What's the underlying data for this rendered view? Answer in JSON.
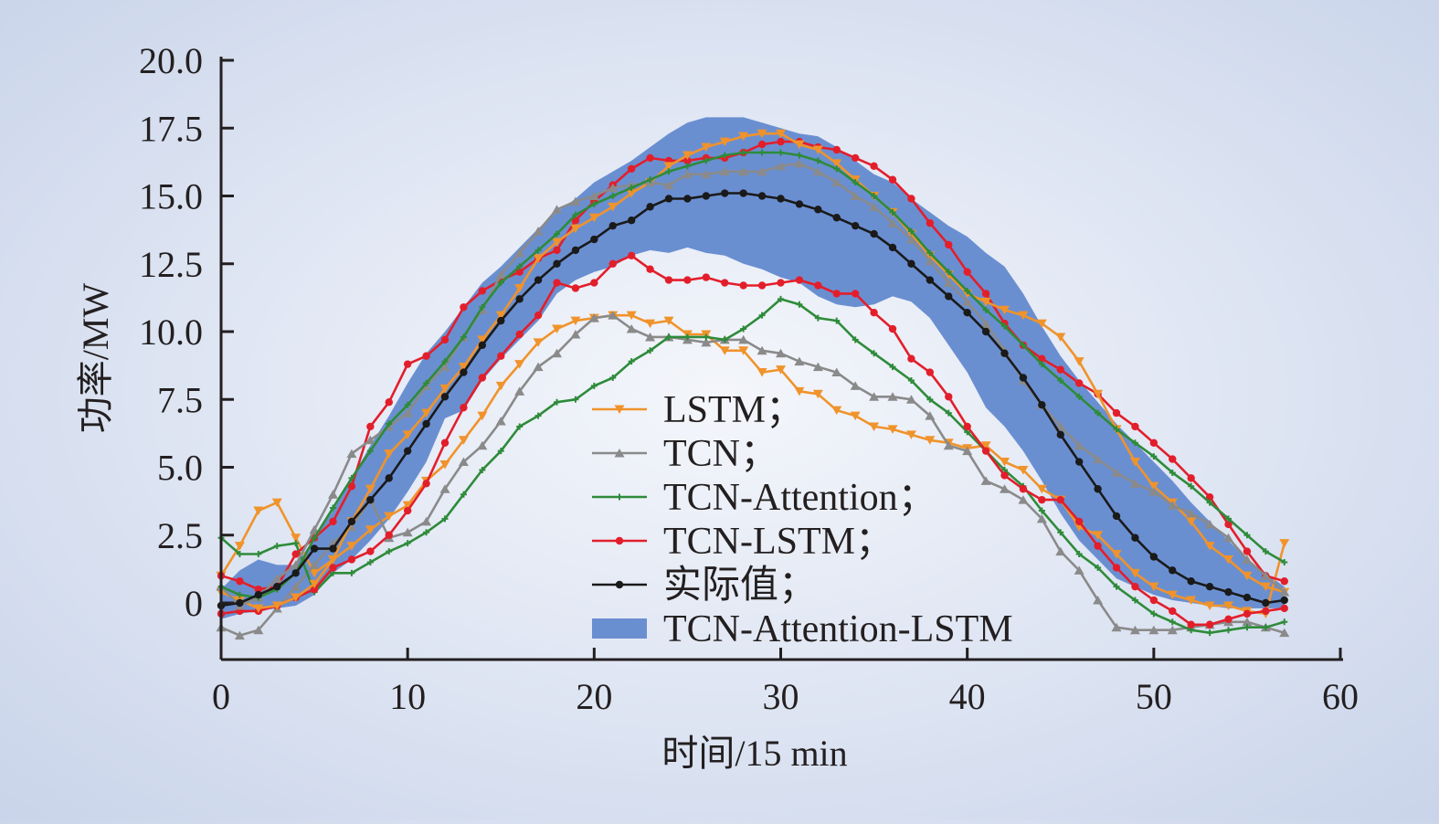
{
  "chart_data": {
    "type": "line",
    "xlabel": "时间/15 min",
    "ylabel": "功率/MW",
    "xlim": [
      0,
      60
    ],
    "ylim": [
      -2,
      20
    ],
    "x_ticks": [
      "0",
      "10",
      "20",
      "30",
      "40",
      "50",
      "60"
    ],
    "y_ticks": [
      "0",
      "2.5",
      "5.0",
      "7.5",
      "10.0",
      "12.5",
      "15.0",
      "17.5",
      "20.0"
    ],
    "y_tick_values": [
      0,
      2.5,
      5,
      7.5,
      10,
      12.5,
      15,
      17.5,
      20
    ],
    "x_tick_values": [
      0,
      10,
      20,
      30,
      40,
      50,
      60
    ],
    "x": [
      0,
      1,
      2,
      3,
      4,
      5,
      6,
      7,
      8,
      9,
      10,
      11,
      12,
      13,
      14,
      15,
      16,
      17,
      18,
      19,
      20,
      21,
      22,
      23,
      24,
      25,
      26,
      27,
      28,
      29,
      30,
      31,
      32,
      33,
      34,
      35,
      36,
      37,
      38,
      39,
      40,
      41,
      42,
      43,
      44,
      45,
      46,
      47,
      48,
      49,
      50,
      51,
      52,
      53,
      54,
      55,
      56,
      57
    ],
    "legend": {
      "entries": [
        "LSTM；",
        "TCN；",
        "TCN-Attention；",
        "TCN-LSTM；",
        "实际值；",
        "TCN-Attention-LSTM"
      ]
    },
    "band": {
      "name": "TCN-Attention-LSTM",
      "color": "#6a8fd1",
      "upper": [
        0.5,
        1.2,
        1.6,
        1.4,
        1.4,
        2.4,
        3.4,
        4.6,
        5.8,
        6.9,
        8.1,
        9.2,
        10.0,
        10.9,
        11.8,
        12.4,
        13.1,
        13.8,
        14.4,
        14.9,
        15.5,
        15.9,
        16.3,
        16.8,
        17.3,
        17.7,
        17.9,
        17.9,
        17.9,
        17.7,
        17.5,
        17.3,
        17.2,
        16.8,
        16.3,
        15.8,
        15.5,
        14.9,
        14.4,
        13.9,
        13.5,
        12.9,
        12.4,
        11.4,
        10.2,
        9.1,
        8.2,
        7.4,
        6.6,
        5.9,
        5.2,
        4.5,
        3.7,
        3.0,
        2.3,
        1.6,
        1.1,
        0.6
      ],
      "lower": [
        -0.6,
        -0.4,
        -0.3,
        -0.2,
        -0.1,
        0.3,
        1.1,
        1.6,
        2.3,
        3.1,
        4.1,
        5.2,
        6.8,
        7.1,
        8.2,
        9.0,
        9.7,
        10.4,
        11.4,
        11.9,
        12.2,
        12.4,
        12.8,
        13.0,
        12.9,
        13.1,
        12.9,
        12.8,
        12.5,
        12.3,
        12.0,
        11.8,
        11.3,
        11.0,
        10.9,
        11.0,
        11.3,
        11.1,
        10.5,
        9.5,
        8.5,
        7.2,
        6.5,
        5.6,
        4.5,
        3.3,
        2.3,
        1.6,
        0.9,
        0.6,
        0.3,
        0.1,
        0.0,
        -0.1,
        -0.2,
        -0.2,
        -0.2,
        -0.2
      ]
    },
    "series": [
      {
        "name": "LSTM；",
        "color": "#f0932b",
        "marker": "triangle-down",
        "values": [
          1.0,
          2.1,
          3.4,
          3.7,
          2.4,
          1.1,
          1.6,
          2.1,
          2.7,
          3.2,
          3.6,
          4.5,
          5.1,
          6.0,
          6.9,
          8.0,
          8.8,
          9.6,
          10.1,
          10.4,
          10.5,
          10.6,
          10.6,
          10.3,
          10.4,
          9.9,
          9.9,
          9.3,
          9.3,
          8.5,
          8.6,
          7.8,
          7.7,
          7.1,
          6.9,
          6.5,
          6.4,
          6.2,
          6.0,
          5.9,
          5.7,
          5.8,
          5.2,
          4.9,
          4.2,
          3.8,
          2.8,
          2.5,
          1.8,
          1.1,
          0.6,
          0.3,
          0.1,
          -0.1,
          -0.1,
          -0.3,
          -0.4,
          2.2
        ]
      },
      {
        "name": "TCN；",
        "color": "#8a8a8a",
        "marker": "triangle-up",
        "values": [
          -0.9,
          -1.2,
          -1.0,
          -0.2,
          0.6,
          1.4,
          2.2,
          2.8,
          3.8,
          2.4,
          2.6,
          3.0,
          4.2,
          5.2,
          5.8,
          6.7,
          7.8,
          8.7,
          9.2,
          9.9,
          10.5,
          10.6,
          10.1,
          9.8,
          9.8,
          9.7,
          9.6,
          9.7,
          9.7,
          9.3,
          9.2,
          8.9,
          8.7,
          8.5,
          8.0,
          7.6,
          7.6,
          7.5,
          6.9,
          5.8,
          5.6,
          4.5,
          4.2,
          3.8,
          3.1,
          1.9,
          1.2,
          0.1,
          -0.9,
          -1.0,
          -1.0,
          -1.0,
          -0.9,
          -0.8,
          -0.7,
          -0.7,
          -0.9,
          -1.1
        ]
      },
      {
        "name": "TCN-Attention；",
        "color": "#2e8b3a",
        "marker": "plus",
        "values": [
          2.4,
          1.8,
          1.8,
          2.1,
          2.2,
          0.4,
          1.1,
          1.1,
          1.5,
          1.9,
          2.2,
          2.6,
          3.1,
          4.0,
          4.9,
          5.6,
          6.5,
          6.9,
          7.4,
          7.5,
          8.0,
          8.3,
          8.9,
          9.3,
          9.8,
          9.8,
          9.8,
          9.7,
          10.1,
          10.6,
          11.2,
          11.0,
          10.5,
          10.4,
          9.7,
          9.2,
          8.7,
          8.2,
          7.5,
          7.0,
          6.3,
          5.6,
          4.9,
          4.3,
          3.4,
          2.6,
          1.8,
          1.3,
          0.6,
          0.1,
          -0.4,
          -0.7,
          -1.0,
          -1.1,
          -1.0,
          -0.9,
          -0.9,
          -0.7
        ]
      },
      {
        "name": "TCN-LSTM；",
        "color": "#e31e2b",
        "marker": "dot",
        "values": [
          -0.4,
          -0.3,
          -0.3,
          -0.1,
          0.2,
          0.5,
          1.3,
          1.6,
          1.9,
          2.5,
          3.4,
          4.4,
          5.9,
          7.2,
          8.3,
          9.1,
          9.9,
          10.6,
          11.8,
          11.6,
          11.8,
          12.5,
          12.8,
          12.3,
          11.9,
          11.9,
          12.0,
          11.8,
          11.7,
          11.7,
          11.8,
          11.9,
          11.7,
          11.4,
          11.4,
          10.7,
          10.1,
          9.0,
          8.5,
          7.6,
          6.5,
          5.6,
          4.7,
          4.2,
          3.8,
          3.8,
          3.0,
          2.1,
          1.3,
          0.6,
          0.1,
          -0.3,
          -0.8,
          -0.8,
          -0.6,
          -0.4,
          -0.3,
          -0.2
        ]
      },
      {
        "name": "TCN-LSTM upper",
        "color": "#e31e2b",
        "marker": "dot",
        "values": [
          1.0,
          0.8,
          0.5,
          0.6,
          1.8,
          2.4,
          3.0,
          4.3,
          6.5,
          7.4,
          8.8,
          9.1,
          9.7,
          10.9,
          11.5,
          11.9,
          12.2,
          12.7,
          13.0,
          14.1,
          14.8,
          15.4,
          16.0,
          16.4,
          16.3,
          16.3,
          16.4,
          16.4,
          16.6,
          16.9,
          17.0,
          17.0,
          16.8,
          16.7,
          16.4,
          16.1,
          15.6,
          14.9,
          14.0,
          13.2,
          12.2,
          11.4,
          10.3,
          9.5,
          9.0,
          8.6,
          8.1,
          7.7,
          7.0,
          6.5,
          5.9,
          5.3,
          4.6,
          3.9,
          2.9,
          1.9,
          1.0,
          0.8
        ]
      },
      {
        "name": "LSTM upper",
        "color": "#f0932b",
        "marker": "triangle-down",
        "values": [
          0.4,
          0.1,
          -0.2,
          -0.1,
          0.2,
          0.7,
          1.6,
          3.0,
          4.2,
          5.5,
          6.2,
          7.0,
          7.9,
          8.7,
          9.7,
          10.6,
          11.6,
          12.7,
          13.3,
          13.8,
          14.2,
          14.6,
          15.1,
          15.5,
          16.1,
          16.5,
          16.8,
          17.0,
          17.2,
          17.3,
          17.3,
          16.9,
          16.7,
          16.2,
          15.6,
          15.0,
          14.4,
          13.6,
          12.8,
          12.1,
          11.4,
          11.1,
          10.8,
          10.6,
          10.3,
          9.8,
          8.9,
          7.7,
          6.4,
          5.2,
          4.3,
          3.7,
          3.0,
          2.1,
          1.6,
          1.0,
          0.6,
          0.4
        ]
      },
      {
        "name": "TCN upper",
        "color": "#8a8a8a",
        "marker": "triangle-up",
        "values": [
          0.6,
          -0.1,
          0.2,
          0.9,
          1.4,
          2.7,
          4.0,
          5.5,
          6.0,
          6.5,
          7.0,
          8.0,
          8.7,
          9.8,
          10.8,
          12.1,
          12.9,
          13.7,
          14.5,
          14.8,
          15.0,
          15.3,
          15.4,
          15.5,
          15.4,
          15.8,
          15.8,
          15.9,
          15.9,
          15.9,
          16.1,
          16.2,
          15.9,
          15.5,
          15.0,
          14.6,
          14.0,
          13.4,
          12.6,
          11.8,
          11.1,
          10.3,
          9.3,
          8.2,
          7.3,
          6.5,
          5.8,
          5.3,
          4.8,
          4.4,
          4.1,
          3.6,
          3.3,
          2.9,
          2.4,
          1.6,
          1.0,
          0.4
        ]
      },
      {
        "name": "TCN-Attention upper",
        "color": "#2e8b3a",
        "marker": "plus",
        "values": [
          0.6,
          0.3,
          0.2,
          0.5,
          1.1,
          2.4,
          3.5,
          4.6,
          5.6,
          6.6,
          7.3,
          8.1,
          8.9,
          9.8,
          10.9,
          11.8,
          12.4,
          13.0,
          13.6,
          14.3,
          14.7,
          15.0,
          15.3,
          15.6,
          15.9,
          16.1,
          16.3,
          16.5,
          16.6,
          16.6,
          16.6,
          16.5,
          16.3,
          16.0,
          15.5,
          15.0,
          14.4,
          13.7,
          12.9,
          12.2,
          11.5,
          10.8,
          10.2,
          9.5,
          8.8,
          8.2,
          7.6,
          7.0,
          6.4,
          5.9,
          5.4,
          4.8,
          4.3,
          3.7,
          3.1,
          2.5,
          1.9,
          1.5
        ]
      },
      {
        "name": "实际值；",
        "color": "#1a1a1a",
        "marker": "dot",
        "values": [
          -0.1,
          0.0,
          0.3,
          0.6,
          1.1,
          2.0,
          2.0,
          3.0,
          3.8,
          4.6,
          5.6,
          6.6,
          7.6,
          8.5,
          9.5,
          10.4,
          11.2,
          11.9,
          12.5,
          13.0,
          13.4,
          13.9,
          14.1,
          14.6,
          14.9,
          14.9,
          15.0,
          15.1,
          15.1,
          15.0,
          14.9,
          14.7,
          14.5,
          14.2,
          13.9,
          13.6,
          13.1,
          12.5,
          11.9,
          11.3,
          10.7,
          10.0,
          9.2,
          8.3,
          7.3,
          6.2,
          5.2,
          4.2,
          3.2,
          2.4,
          1.7,
          1.2,
          0.8,
          0.6,
          0.4,
          0.2,
          0.0,
          0.1
        ]
      }
    ]
  }
}
